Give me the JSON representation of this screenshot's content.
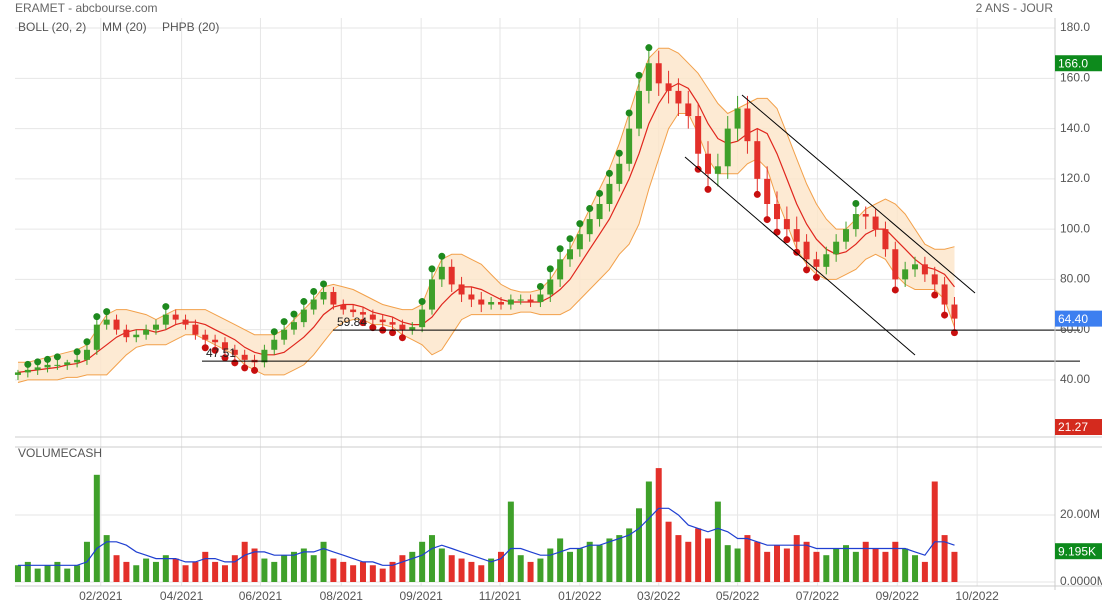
{
  "header": {
    "title": "ERAMET - abcbourse.com",
    "period": "2 ANS - JOUR"
  },
  "chart_data": [
    {
      "type": "candlestick",
      "open": [
        42,
        43,
        44,
        45,
        46,
        46,
        47,
        48,
        52,
        62,
        64,
        60,
        57,
        58,
        60,
        62,
        66,
        64,
        62,
        58,
        56,
        55,
        52,
        50,
        48,
        47,
        52,
        56,
        60,
        63,
        68,
        72,
        75,
        70,
        68,
        67,
        66,
        64,
        63,
        62,
        60,
        61,
        68,
        80,
        85,
        78,
        74,
        72,
        70,
        71,
        70,
        72,
        72,
        71,
        74,
        80,
        88,
        92,
        98,
        104,
        110,
        118,
        126,
        140,
        155,
        166,
        158,
        155,
        150,
        145,
        130,
        122,
        125,
        140,
        148,
        135,
        120,
        110,
        104,
        100,
        95,
        88,
        85,
        90,
        95,
        100,
        106,
        105,
        100,
        92,
        80,
        84,
        86,
        82,
        78,
        70
      ],
      "high": [
        44,
        45,
        46,
        47,
        48,
        48,
        50,
        54,
        64,
        66,
        66,
        62,
        60,
        62,
        64,
        68,
        68,
        66,
        64,
        60,
        58,
        57,
        54,
        52,
        50,
        54,
        58,
        62,
        65,
        70,
        74,
        77,
        77,
        72,
        70,
        69,
        68,
        66,
        65,
        64,
        63,
        70,
        83,
        88,
        88,
        81,
        77,
        75,
        73,
        73,
        74,
        74,
        74,
        76,
        83,
        91,
        95,
        101,
        107,
        113,
        121,
        129,
        145,
        160,
        171,
        171,
        163,
        160,
        155,
        150,
        135,
        130,
        145,
        153,
        153,
        140,
        125,
        115,
        109,
        105,
        98,
        91,
        93,
        98,
        103,
        109,
        109,
        108,
        103,
        95,
        87,
        89,
        89,
        85,
        81,
        73
      ],
      "low": [
        40,
        41,
        42,
        43,
        44,
        44,
        45,
        46,
        50,
        60,
        58,
        55,
        55,
        56,
        58,
        60,
        62,
        60,
        56,
        54,
        53,
        50,
        48,
        46,
        45,
        45,
        50,
        54,
        58,
        61,
        66,
        70,
        68,
        66,
        65,
        64,
        62,
        61,
        60,
        58,
        58,
        59,
        66,
        77,
        75,
        71,
        69,
        67,
        68,
        68,
        68,
        70,
        69,
        69,
        71,
        77,
        85,
        89,
        95,
        101,
        107,
        115,
        123,
        137,
        150,
        153,
        150,
        145,
        140,
        125,
        117,
        117,
        120,
        135,
        130,
        115,
        105,
        100,
        97,
        92,
        85,
        82,
        82,
        87,
        92,
        97,
        100,
        97,
        89,
        77,
        77,
        81,
        79,
        75,
        67,
        60
      ],
      "close": [
        43,
        44,
        45,
        46,
        46,
        47,
        48,
        52,
        62,
        64,
        60,
        57,
        58,
        60,
        62,
        66,
        64,
        62,
        58,
        56,
        55,
        52,
        50,
        48,
        47,
        52,
        56,
        60,
        63,
        68,
        72,
        75,
        70,
        68,
        67,
        66,
        64,
        63,
        62,
        60,
        61,
        68,
        80,
        85,
        78,
        74,
        72,
        70,
        71,
        70,
        72,
        72,
        71,
        74,
        80,
        88,
        92,
        98,
        104,
        110,
        118,
        126,
        140,
        155,
        166,
        158,
        155,
        150,
        145,
        130,
        122,
        125,
        140,
        148,
        135,
        120,
        110,
        104,
        100,
        95,
        88,
        85,
        90,
        95,
        100,
        106,
        105,
        100,
        92,
        80,
        84,
        86,
        82,
        78,
        70,
        64.4
      ],
      "up_color": "#3fa02a",
      "down_color": "#e3302a",
      "bands": {
        "name": "BOLL (20, 2)",
        "color": "#f2a04a",
        "fill": "#fde5c8",
        "upper": [
          47,
          47,
          48,
          49,
          50,
          51,
          52,
          54,
          60,
          66,
          68,
          68,
          67,
          66,
          64,
          66,
          68,
          68,
          68,
          68,
          66,
          64,
          62,
          60,
          58,
          58,
          58,
          60,
          64,
          68,
          72,
          77,
          78,
          77,
          76,
          74,
          72,
          70,
          69,
          68,
          68,
          70,
          80,
          88,
          90,
          90,
          88,
          86,
          82,
          78,
          76,
          75,
          75,
          76,
          80,
          86,
          92,
          100,
          108,
          116,
          124,
          134,
          146,
          158,
          168,
          172,
          172,
          170,
          166,
          162,
          156,
          150,
          146,
          148,
          150,
          152,
          152,
          148,
          138,
          128,
          118,
          110,
          104,
          100,
          100,
          104,
          108,
          110,
          112,
          110,
          106,
          100,
          94,
          92,
          92,
          93
        ],
        "lower": [
          39,
          40,
          40,
          40,
          40,
          41,
          41,
          42,
          42,
          42,
          46,
          50,
          53,
          54,
          54,
          54,
          56,
          58,
          58,
          56,
          54,
          52,
          50,
          46,
          44,
          42,
          42,
          42,
          44,
          46,
          50,
          55,
          60,
          63,
          64,
          64,
          62,
          62,
          61,
          58,
          56,
          54,
          50,
          52,
          58,
          64,
          66,
          66,
          66,
          66,
          66,
          67,
          67,
          66,
          66,
          66,
          68,
          72,
          76,
          80,
          84,
          90,
          94,
          102,
          116,
          128,
          140,
          146,
          146,
          138,
          128,
          122,
          122,
          122,
          126,
          128,
          124,
          112,
          102,
          92,
          86,
          82,
          80,
          80,
          82,
          84,
          88,
          90,
          88,
          82,
          78,
          76,
          76,
          76,
          72,
          61
        ]
      },
      "ma": {
        "name": "MM (20)",
        "color": "#e0261d",
        "values": [
          43,
          43.5,
          44,
          44.5,
          45,
          46,
          46.5,
          48,
          51,
          54,
          57,
          59,
          60,
          60,
          59,
          60,
          62,
          63,
          63,
          62,
          60,
          58,
          56,
          53,
          51,
          50,
          50,
          51,
          54,
          57,
          61,
          66,
          69,
          70,
          70,
          69,
          67,
          66,
          65,
          63,
          62,
          62,
          65,
          70,
          74,
          77,
          77,
          76,
          74,
          72,
          71,
          71,
          71,
          71,
          73,
          76,
          80,
          86,
          92,
          98,
          104,
          112,
          120,
          130,
          142,
          150,
          156,
          158,
          156,
          150,
          142,
          136,
          134,
          135,
          138,
          140,
          138,
          130,
          120,
          110,
          102,
          96,
          92,
          90,
          91,
          94,
          98,
          100,
          100,
          96,
          92,
          88,
          85,
          84,
          82,
          77
        ]
      },
      "markers": {
        "name": "PHPB (20)",
        "color": "#1e8a1e",
        "low_color": "#c80f0f"
      },
      "xlim": [
        -0.3,
        105.2
      ],
      "xticks": [
        {
          "value": 8.4,
          "label": "02/2021"
        },
        {
          "value": 16.6,
          "label": "04/2021"
        },
        {
          "value": 24.6,
          "label": "06/2021"
        },
        {
          "value": 32.8,
          "label": "08/2021"
        },
        {
          "value": 40.9,
          "label": "09/2021"
        },
        {
          "value": 48.9,
          "label": "11/2021"
        },
        {
          "value": 57,
          "label": "01/2022"
        },
        {
          "value": 65,
          "label": "03/2022"
        },
        {
          "value": 73,
          "label": "05/2022"
        },
        {
          "value": 81.1,
          "label": "07/2022"
        },
        {
          "value": 89.2,
          "label": "09/2022"
        },
        {
          "value": 97.3,
          "label": "10/2022"
        }
      ],
      "ylim": [
        17.3,
        184
      ],
      "yticks": [
        {
          "value": 180,
          "label": "180.0"
        },
        {
          "value": 160,
          "label": "160.0"
        },
        {
          "value": 140,
          "label": "140.0"
        },
        {
          "value": 120,
          "label": "120.0"
        },
        {
          "value": 100,
          "label": "100.0"
        },
        {
          "value": 80,
          "label": "80.00"
        },
        {
          "value": 60,
          "label": "60.00"
        },
        {
          "value": 40,
          "label": "40.00"
        }
      ],
      "grid": true,
      "annotations": [
        {
          "value": 59.84,
          "label": "59.84"
        },
        {
          "value": 47.51,
          "label": "47.51"
        }
      ],
      "badges": [
        {
          "value": 166,
          "label": "166.0",
          "color": "#0d8a1c"
        },
        {
          "value": 64.4,
          "label": "64.40",
          "color": "#3d7ff0"
        },
        {
          "value": 21.27,
          "label": "21.27",
          "color": "#d42a1e"
        }
      ]
    },
    {
      "type": "bar",
      "title": "VOLUMECASH",
      "title_color": "#3fa02a",
      "values": [
        5,
        6,
        4,
        5,
        6,
        4,
        5,
        12,
        32,
        14,
        8,
        6,
        5,
        7,
        6,
        8,
        7,
        5,
        6,
        9,
        6,
        5,
        8,
        12,
        10,
        7,
        6,
        8,
        9,
        10,
        8,
        12,
        7,
        6,
        5,
        6,
        5,
        4,
        6,
        8,
        9,
        12,
        14,
        10,
        8,
        7,
        6,
        5,
        7,
        9,
        24,
        8,
        6,
        7,
        10,
        13,
        9,
        10,
        12,
        11,
        13,
        14,
        16,
        22,
        30,
        34,
        18,
        14,
        12,
        16,
        13,
        24,
        11,
        10,
        14,
        12,
        9,
        11,
        10,
        14,
        12,
        9,
        8,
        10,
        11,
        9,
        12,
        10,
        9,
        12,
        10,
        8,
        6,
        30,
        14,
        9
      ],
      "ma": {
        "color": "#1f3fd1",
        "values": [
          5,
          5,
          5,
          5,
          5,
          5,
          5,
          6,
          10,
          12,
          12,
          11,
          9,
          8,
          7,
          7,
          7,
          6,
          6,
          7,
          7,
          6,
          6,
          8,
          9,
          9,
          8,
          8,
          8,
          9,
          9,
          10,
          9,
          8,
          7,
          6,
          6,
          5,
          5,
          6,
          7,
          8,
          10,
          11,
          10,
          9,
          8,
          7,
          6,
          7,
          10,
          10,
          9,
          8,
          8,
          9,
          10,
          10,
          11,
          11,
          12,
          13,
          14,
          16,
          19,
          22,
          22,
          20,
          17,
          16,
          15,
          16,
          15,
          13,
          13,
          12,
          11,
          11,
          11,
          11,
          11,
          10,
          10,
          10,
          10,
          10,
          10,
          10,
          10,
          10,
          10,
          9,
          8,
          12,
          12,
          11
        ]
      },
      "ylim": [
        0,
        40.3
      ],
      "yticks": [
        {
          "value": 20,
          "label": "20.00M"
        },
        {
          "value": 0,
          "label": "0.0000M"
        }
      ],
      "badges": [
        {
          "value": 9.195,
          "label": "9.195K",
          "color": "#0d8a1c"
        }
      ]
    }
  ]
}
